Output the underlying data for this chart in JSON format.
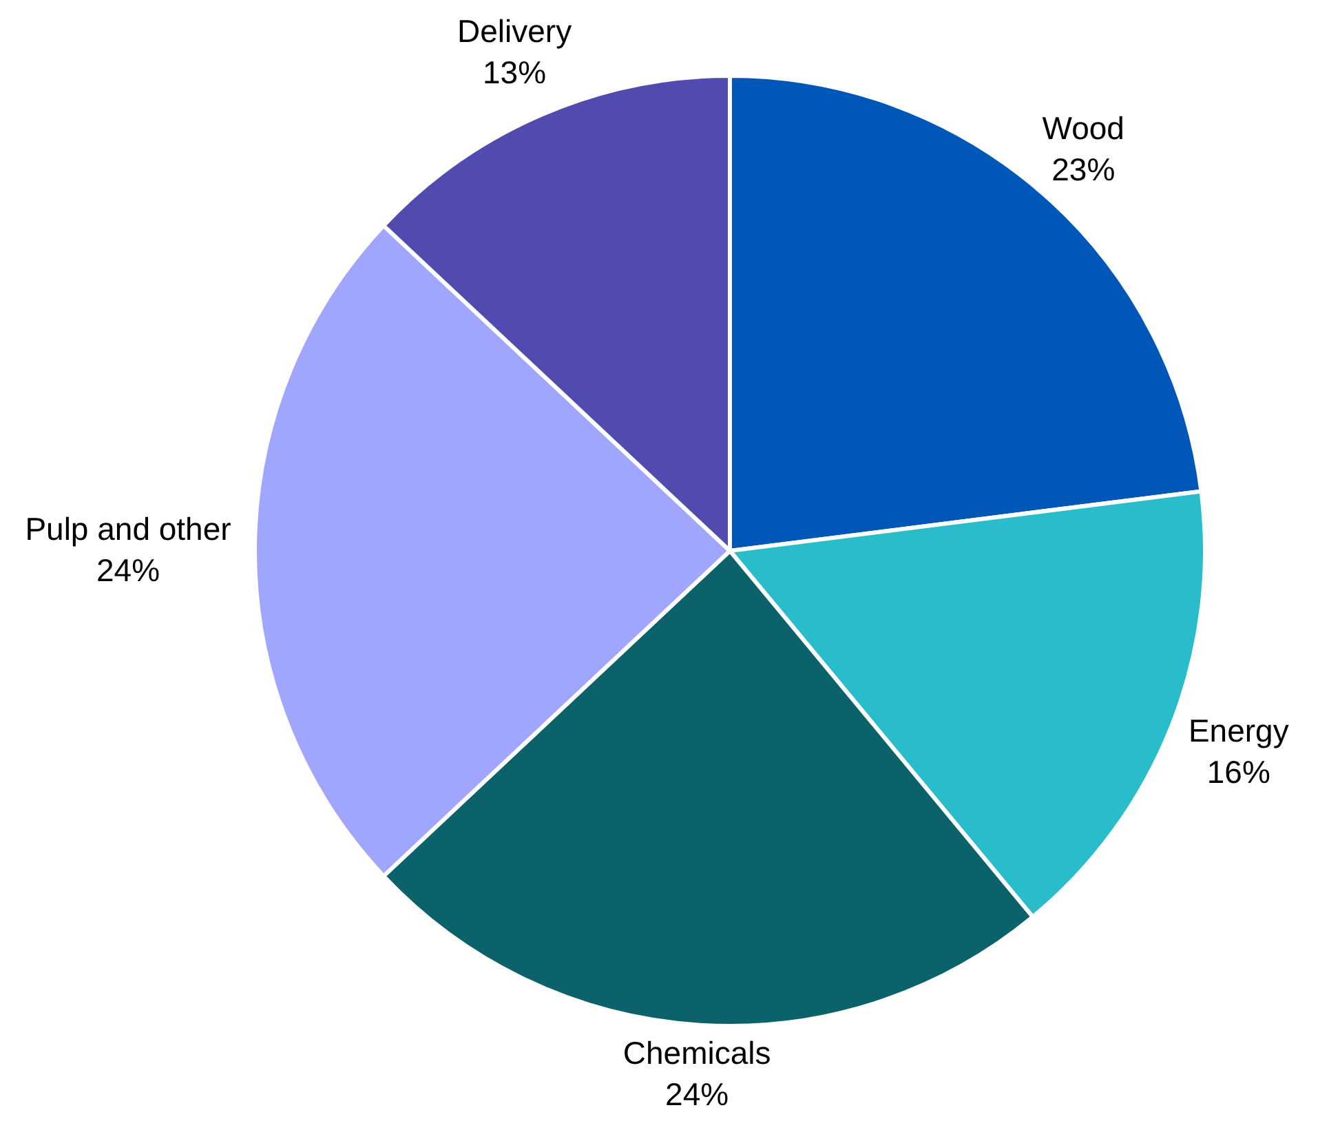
{
  "chart_data": {
    "type": "pie",
    "categories": [
      "Wood",
      "Energy",
      "Chemicals",
      "Pulp and other",
      "Delivery"
    ],
    "values": [
      23,
      16,
      24,
      24,
      13
    ],
    "value_labels": [
      "23%",
      "16%",
      "24%",
      "24%",
      "13%"
    ],
    "colors": [
      "#0057b8",
      "#29bdcc",
      "#0b626b",
      "#a0a5fe",
      "#524baf"
    ],
    "data_labels": true
  }
}
